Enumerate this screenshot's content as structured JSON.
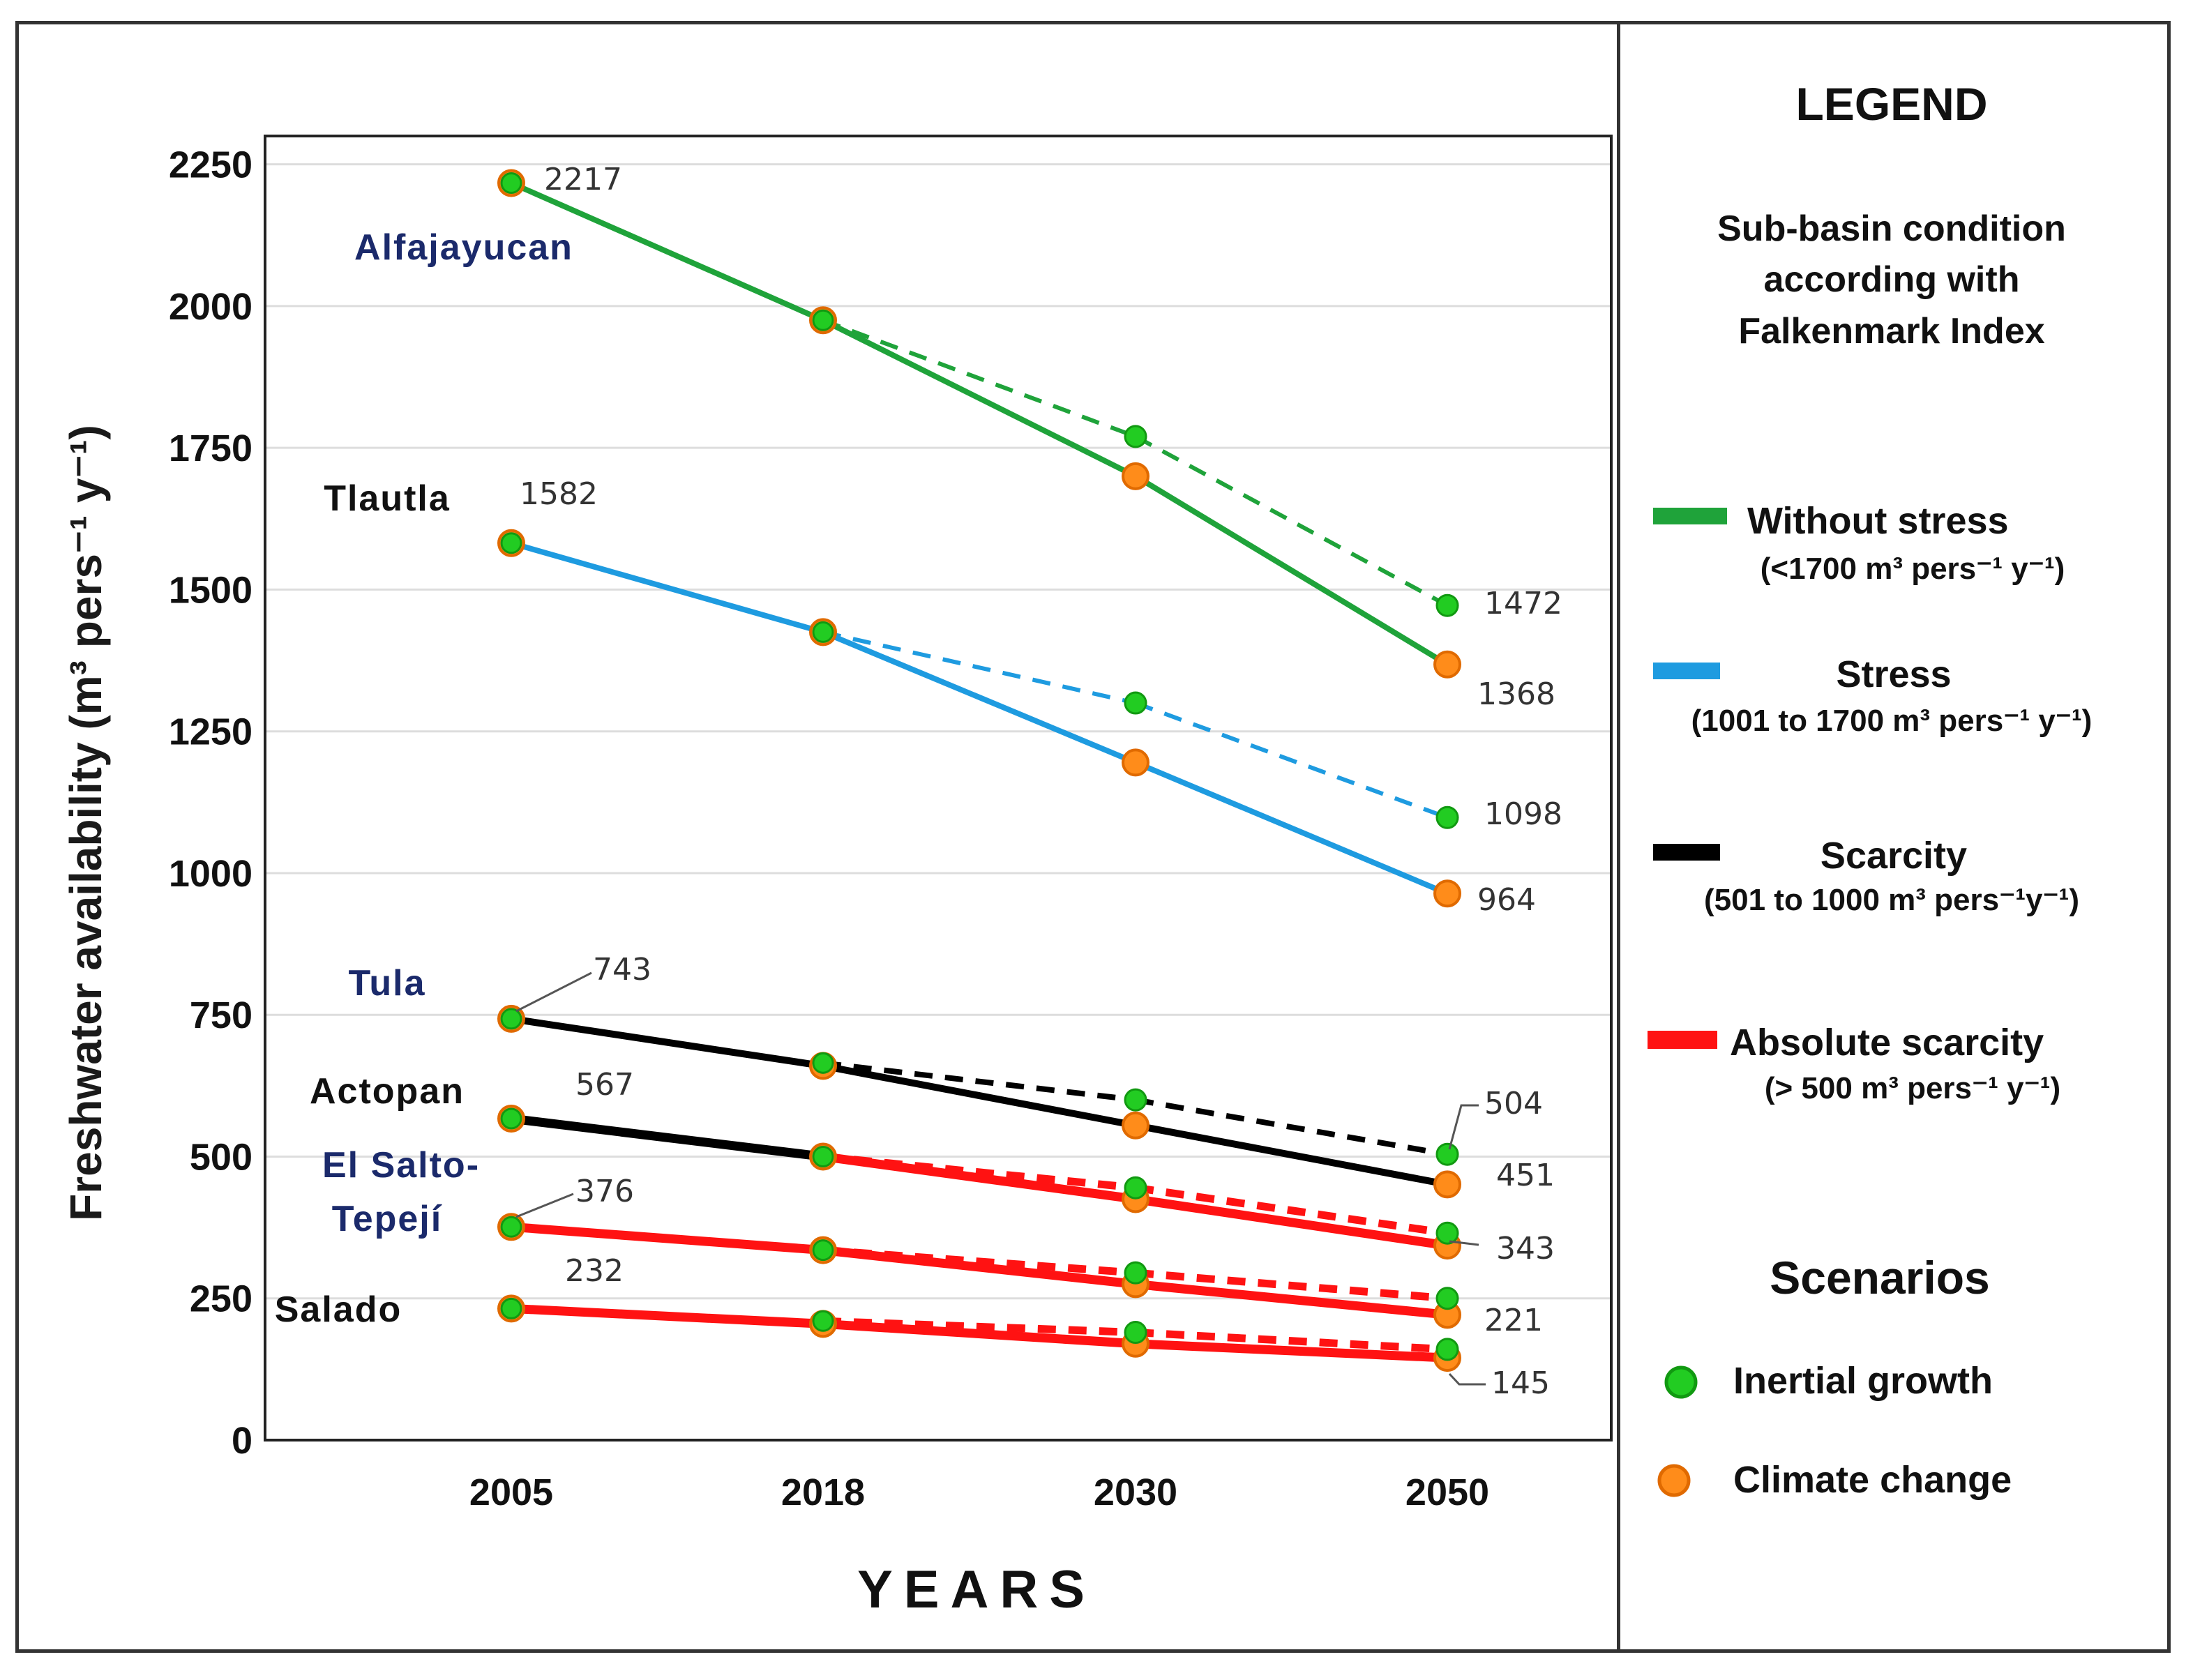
{
  "chart_data": {
    "type": "line",
    "title": "",
    "xlabel": "YEARS",
    "ylabel": "Freshwater availability (m³ pers⁻¹ y⁻¹)",
    "ylim": [
      0,
      2250
    ],
    "yticks": [
      0,
      250,
      500,
      750,
      1000,
      1250,
      1500,
      1750,
      2000,
      2250
    ],
    "categories": [
      "2005",
      "2018",
      "2030",
      "2050"
    ],
    "series": [
      {
        "basin": "Alfajayucan",
        "inertial": [
          2217,
          1975,
          1770,
          1472
        ],
        "climate": [
          2217,
          1975,
          1700,
          1368
        ]
      },
      {
        "basin": "Tlautla",
        "inertial": [
          1582,
          1425,
          1300,
          1098
        ],
        "climate": [
          1582,
          1425,
          1195,
          964
        ]
      },
      {
        "basin": "Tula",
        "inertial": [
          743,
          665,
          600,
          504
        ],
        "climate": [
          743,
          660,
          555,
          451
        ]
      },
      {
        "basin": "Actopan",
        "inertial": [
          567,
          500,
          445,
          365
        ],
        "climate": [
          567,
          500,
          425,
          343
        ]
      },
      {
        "basin": "El Salto-Tepejí",
        "inertial": [
          376,
          335,
          295,
          250
        ],
        "climate": [
          376,
          335,
          275,
          221
        ]
      },
      {
        "basin": "Salado",
        "inertial": [
          232,
          210,
          190,
          160
        ],
        "climate": [
          232,
          205,
          170,
          145
        ]
      }
    ],
    "basin_labels": [
      {
        "text": "Alfajayucan",
        "color": "#1b2a6b"
      },
      {
        "text": "Tlautla",
        "color": "#111111"
      },
      {
        "text": "Tula",
        "color": "#1b2a6b"
      },
      {
        "text": "Actopan",
        "color": "#111111"
      },
      {
        "text": "El Salto-",
        "color": "#1b2a6b"
      },
      {
        "text": "Tepejí",
        "color": "#1b2a6b"
      },
      {
        "text": "Salado",
        "color": "#111111"
      }
    ],
    "value_labels": [
      "2217",
      "1582",
      "743",
      "567",
      "376",
      "232",
      "1472",
      "1368",
      "1098",
      "964",
      "504",
      "451",
      "343",
      "221",
      "145"
    ],
    "colors": {
      "without_stress": "#1fa33a",
      "stress": "#1e9be0",
      "scarcity": "#000000",
      "absolute_scarcity": "#ff1212",
      "inertial_marker": "#22cc22",
      "climate_marker": "#ff8c1a"
    }
  },
  "legend": {
    "title": "LEGEND",
    "subtitle": [
      "Sub-basin condition",
      "according with",
      "Falkenmark Index"
    ],
    "items": [
      {
        "label": "Without stress",
        "range": "(<1700 m³ pers⁻¹ y⁻¹)",
        "color": "#1fa33a"
      },
      {
        "label": "Stress",
        "range": "(1001 to 1700 m³ pers⁻¹ y⁻¹)",
        "color": "#1e9be0"
      },
      {
        "label": "Scarcity",
        "range": "(501 to 1000 m³ pers⁻¹y⁻¹)",
        "color": "#000000"
      },
      {
        "label": "Absolute scarcity",
        "range": "(> 500 m³ pers⁻¹ y⁻¹)",
        "color": "#ff1212"
      }
    ],
    "scenarios_title": "Scenarios",
    "scenarios": [
      {
        "label": "Inertial growth",
        "icon": "green-circle-icon"
      },
      {
        "label": "Climate change",
        "icon": "orange-circle-icon"
      }
    ]
  }
}
